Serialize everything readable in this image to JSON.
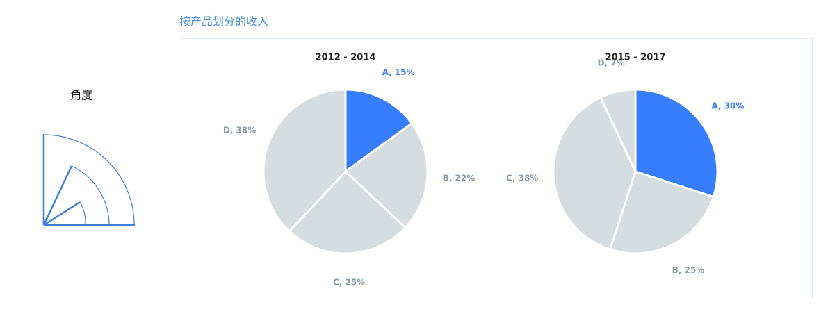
{
  "title": "按产品划分的收入",
  "icon_label": "角度",
  "chart_data": [
    {
      "type": "pie",
      "title": "2012 - 2014",
      "categories": [
        "A",
        "B",
        "C",
        "D"
      ],
      "values": [
        15,
        22,
        25,
        38
      ],
      "value_labels": [
        "A, 15%",
        "B, 22%",
        "C, 25%",
        "D, 38%"
      ],
      "colors": [
        "#377dff",
        "#d5dde0",
        "#d5dde0",
        "#d5dde0"
      ],
      "label_colors": [
        "#377dff",
        "#8a9ba3",
        "#8a9ba3",
        "#8a9ba3"
      ]
    },
    {
      "type": "pie",
      "title": "2015 - 2017",
      "categories": [
        "A",
        "B",
        "C",
        "D"
      ],
      "values": [
        30,
        25,
        38,
        7
      ],
      "value_labels": [
        "A, 30%",
        "B, 25%",
        "C, 38%",
        "D, 7%"
      ],
      "colors": [
        "#377dff",
        "#d5dde0",
        "#d5dde0",
        "#d5dde0"
      ],
      "label_colors": [
        "#377dff",
        "#8a9ba3",
        "#8a9ba3",
        "#8a9ba3"
      ]
    }
  ]
}
